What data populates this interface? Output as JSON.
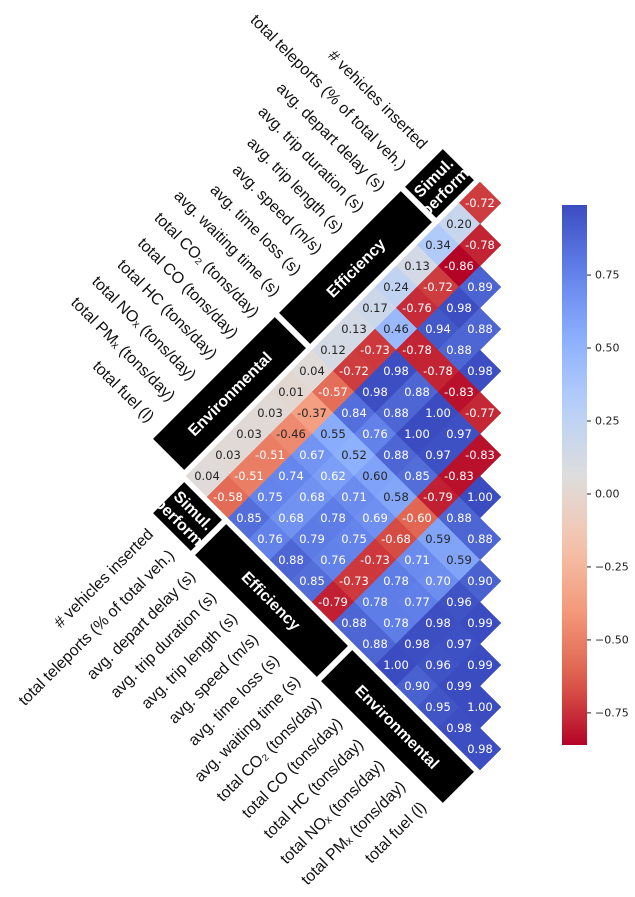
{
  "chart_data": {
    "type": "heatmap",
    "colormap": "coolwarm_r",
    "groups": [
      {
        "name_lines": [
          "Simul.",
          "perform."
        ],
        "variables": [
          "# vehicles inserted",
          "total teleports (% of total veh.)"
        ]
      },
      {
        "name_lines": [
          "Efficiency"
        ],
        "variables": [
          "avg. depart delay (s)",
          "avg. trip duration (s)",
          "avg. trip length (s)",
          "avg. speed (m/s)",
          "avg. time loss (s)",
          "avg. waiting time (s)"
        ]
      },
      {
        "name_lines": [
          "Environmental"
        ],
        "variables": [
          "total CO₂ (tons/day)",
          "total CO  (tons/day)",
          "total HC (tons/day)",
          "total NOₓ (tons/day)",
          "total PMₓ (tons/day)",
          "total  fuel (l)"
        ]
      }
    ],
    "rows": [
      [
        -0.72,
        0.2,
        0.34,
        0.13,
        0.24,
        0.17,
        0.13,
        0.12,
        0.04,
        0.01,
        0.03,
        0.03,
        0.03,
        0.04
      ],
      [
        -0.78,
        -0.86,
        -0.72,
        -0.76,
        0.46,
        -0.73,
        -0.72,
        -0.57,
        -0.37,
        -0.46,
        -0.51,
        -0.51,
        -0.58
      ],
      [
        0.89,
        0.98,
        0.94,
        -0.78,
        0.98,
        0.98,
        0.84,
        0.55,
        0.67,
        0.74,
        0.75,
        0.85
      ],
      [
        0.88,
        0.88,
        -0.78,
        0.88,
        0.88,
        0.76,
        0.52,
        0.62,
        0.68,
        0.68,
        0.76
      ],
      [
        0.98,
        -0.83,
        1.0,
        1.0,
        0.88,
        0.6,
        0.71,
        0.78,
        0.79,
        0.88
      ],
      [
        -0.77,
        0.97,
        0.97,
        0.85,
        0.58,
        0.69,
        0.75,
        0.76,
        0.85
      ],
      [
        -0.83,
        -0.83,
        -0.79,
        -0.6,
        -0.68,
        -0.73,
        -0.73,
        -0.79
      ],
      [
        1.0,
        0.88,
        0.59,
        0.71,
        0.78,
        0.78,
        0.88
      ],
      [
        0.88,
        0.59,
        0.7,
        0.77,
        0.78,
        0.88
      ],
      [
        0.9,
        0.96,
        0.98,
        0.98,
        1.0
      ],
      [
        0.99,
        0.97,
        0.96,
        0.9
      ],
      [
        0.99,
        0.99,
        0.95
      ],
      [
        1.0,
        0.98
      ],
      [
        0.98
      ]
    ],
    "value_labels": [
      [
        "-0.72",
        "0.20",
        "0.34",
        "0.13",
        "0.24",
        "0.17",
        "0.13",
        "0.12",
        "0.04",
        "0.01",
        "0.03",
        "0.03",
        "0.03",
        "0.04"
      ],
      [
        "-0.78",
        "-0.86",
        "-0.72",
        "-0.76",
        "0.46",
        "-0.73",
        "-0.72",
        "-0.57",
        "-0.37",
        "-0.46",
        "-0.51",
        "-0.51",
        "-0.58"
      ],
      [
        "0.89",
        "0.98",
        "0.94",
        "-0.78",
        "0.98",
        "0.98",
        "0.84",
        "0.55",
        "0.67",
        "0.74",
        "0.75",
        "0.85"
      ],
      [
        "0.88",
        "0.88",
        "-0.78",
        "0.88",
        "0.88",
        "0.76",
        "0.52",
        "0.62",
        "0.68",
        "0.68",
        "0.76"
      ],
      [
        "0.98",
        "-0.83",
        "1.00",
        "1.00",
        "0.88",
        "0.60",
        "0.71",
        "0.78",
        "0.79",
        "0.88"
      ],
      [
        "-0.77",
        "0.97",
        "0.97",
        "0.85",
        "0.58",
        "0.69",
        "0.75",
        "0.76",
        "0.85"
      ],
      [
        "-0.83",
        "-0.83",
        "-0.79",
        "-0.60",
        "-0.68",
        "-0.73",
        "-0.73",
        "-0.79"
      ],
      [
        "1.00",
        "0.88",
        "0.59",
        "0.71",
        "0.78",
        "0.78",
        "0.88"
      ],
      [
        "0.88",
        "0.59",
        "0.70",
        "0.77",
        "0.78",
        "0.88"
      ],
      [
        "0.90",
        "0.96",
        "0.98",
        "0.98",
        "1.00"
      ],
      [
        "0.99",
        "0.97",
        "0.96",
        "0.90"
      ],
      [
        "0.99",
        "0.99",
        "0.95"
      ],
      [
        "1.00",
        "0.98"
      ],
      [
        "0.98"
      ]
    ],
    "clim": [
      -0.86,
      0.99
    ],
    "colorbar_ticks": [
      {
        "value": -0.75,
        "label": "−0.75"
      },
      {
        "value": -0.5,
        "label": "−0.50"
      },
      {
        "value": -0.25,
        "label": "−0.25"
      },
      {
        "value": 0,
        "label": "0.00"
      },
      {
        "value": 0.25,
        "label": "0.25"
      },
      {
        "value": 0.5,
        "label": "0.50"
      },
      {
        "value": 0.75,
        "label": "0.75"
      }
    ]
  }
}
